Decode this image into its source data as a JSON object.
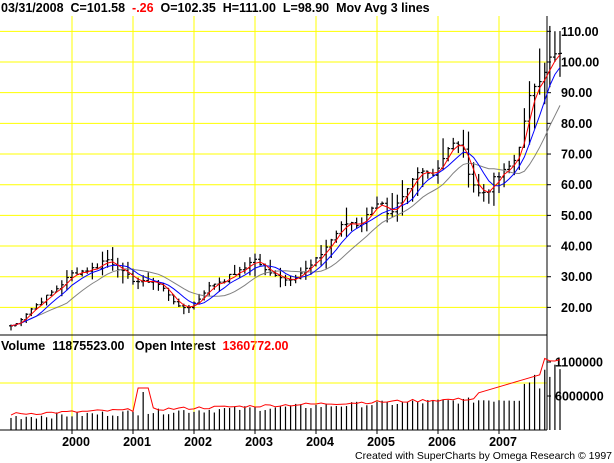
{
  "header": {
    "date": "03/31/2008",
    "close": "C=101.58",
    "change": "-.26",
    "open": "O=102.35",
    "high": "H=111.00",
    "low": "L=98.90",
    "study": "Mov Avg 3 lines"
  },
  "volume_header": {
    "volume_label": "Volume",
    "volume_value": "11875523.00",
    "oi_label": "Open Interest",
    "oi_value": "1360772.00"
  },
  "credit": "Created with SuperCharts by Omega Research © 1997",
  "colors": {
    "grid": "#ffff00",
    "bars": "#000000",
    "ma_fast": "#ff0000",
    "ma_mid": "#0000ff",
    "ma_slow": "#808080",
    "open_interest": "#ff0000",
    "change_negative": "#ff0000"
  },
  "chart_data": [
    {
      "type": "bar",
      "subtype": "ohlc",
      "x_labels": [
        "2000",
        "2001",
        "2002",
        "2003",
        "2004",
        "2005",
        "2006",
        "2007"
      ],
      "y_ticks": [
        "20.00",
        "30.00",
        "40.00",
        "50.00",
        "60.00",
        "70.00",
        "80.00",
        "90.00",
        "100.00",
        "110.00"
      ],
      "ylim": [
        11,
        115
      ],
      "grid": true,
      "series": [
        {
          "name": "Mov Avg 3 lines"
        }
      ],
      "close_path": [
        [
          1999.05,
          14
        ],
        [
          1999.3,
          19
        ],
        [
          1999.55,
          23
        ],
        [
          1999.8,
          27
        ],
        [
          2000.0,
          31
        ],
        [
          2000.2,
          32
        ],
        [
          2000.4,
          33
        ],
        [
          2000.55,
          36
        ],
        [
          2000.7,
          34
        ],
        [
          2000.85,
          31
        ],
        [
          2001.0,
          29
        ],
        [
          2001.15,
          28
        ],
        [
          2001.3,
          29
        ],
        [
          2001.45,
          27
        ],
        [
          2001.6,
          24
        ],
        [
          2001.75,
          20
        ],
        [
          2001.9,
          20
        ],
        [
          2002.05,
          22
        ],
        [
          2002.2,
          26
        ],
        [
          2002.35,
          28
        ],
        [
          2002.5,
          29
        ],
        [
          2002.65,
          31
        ],
        [
          2002.8,
          32
        ],
        [
          2002.95,
          36
        ],
        [
          2003.05,
          35
        ],
        [
          2003.2,
          31
        ],
        [
          2003.35,
          31
        ],
        [
          2003.5,
          29
        ],
        [
          2003.65,
          30
        ],
        [
          2003.8,
          32
        ],
        [
          2003.95,
          34
        ],
        [
          2004.1,
          38
        ],
        [
          2004.25,
          42
        ],
        [
          2004.4,
          46
        ],
        [
          2004.55,
          48
        ],
        [
          2004.7,
          47
        ],
        [
          2004.85,
          50
        ],
        [
          2004.95,
          55
        ],
        [
          2005.1,
          53
        ],
        [
          2005.2,
          48
        ],
        [
          2005.3,
          52
        ],
        [
          2005.45,
          56
        ],
        [
          2005.6,
          62
        ],
        [
          2005.75,
          66
        ],
        [
          2005.9,
          63
        ],
        [
          2006.05,
          68
        ],
        [
          2006.2,
          72
        ],
        [
          2006.35,
          74
        ],
        [
          2006.45,
          68
        ],
        [
          2006.55,
          62
        ],
        [
          2006.65,
          57
        ],
        [
          2006.8,
          58
        ],
        [
          2006.95,
          62
        ],
        [
          2007.1,
          64
        ],
        [
          2007.25,
          68
        ],
        [
          2007.4,
          78
        ],
        [
          2007.55,
          92
        ],
        [
          2007.7,
          97
        ],
        [
          2007.85,
          101
        ],
        [
          2007.95,
          102
        ]
      ]
    },
    {
      "type": "bar",
      "title": "Volume",
      "y_ticks": [
        "6000000",
        "1100000"
      ],
      "grid": true
    }
  ]
}
